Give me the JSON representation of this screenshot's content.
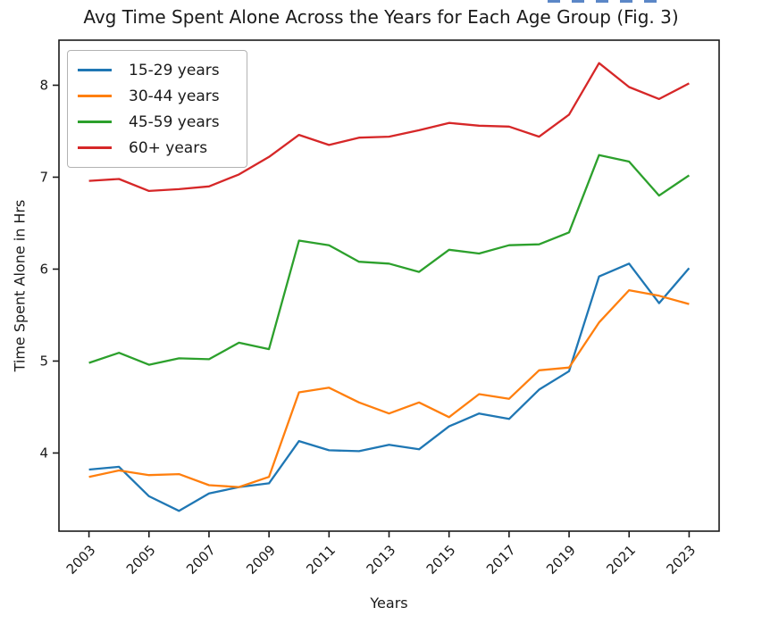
{
  "figure": {
    "top_marks": {
      "count": 5,
      "color": "#5b87c7"
    }
  },
  "chart_data": {
    "type": "line",
    "title": "Avg Time Spent Alone Across the Years for Each Age Group (Fig. 3)",
    "xlabel": "Years",
    "ylabel": "Time Spent Alone in Hrs",
    "x": [
      2003,
      2004,
      2005,
      2006,
      2007,
      2008,
      2009,
      2010,
      2011,
      2012,
      2013,
      2014,
      2015,
      2016,
      2017,
      2018,
      2019,
      2020,
      2021,
      2022,
      2023
    ],
    "series": [
      {
        "name": "15-29 years",
        "color": "#1f77b4",
        "values": [
          3.82,
          3.85,
          3.53,
          3.37,
          3.56,
          3.63,
          3.67,
          4.13,
          4.03,
          4.02,
          4.09,
          4.04,
          4.29,
          4.43,
          4.37,
          4.69,
          4.89,
          5.92,
          6.06,
          5.63,
          6.01
        ]
      },
      {
        "name": "30-44 years",
        "color": "#ff7f0e",
        "values": [
          3.74,
          3.81,
          3.76,
          3.77,
          3.65,
          3.63,
          3.74,
          4.66,
          4.71,
          4.55,
          4.43,
          4.55,
          4.39,
          4.64,
          4.59,
          4.9,
          4.93,
          5.42,
          5.77,
          5.71,
          5.62
        ]
      },
      {
        "name": "45-59 years",
        "color": "#2ca02c",
        "values": [
          4.98,
          5.09,
          4.96,
          5.03,
          5.02,
          5.2,
          5.13,
          6.31,
          6.26,
          6.08,
          6.06,
          5.97,
          6.21,
          6.17,
          6.26,
          6.27,
          6.4,
          7.24,
          7.17,
          6.8,
          7.02
        ]
      },
      {
        "name": "60+ years",
        "color": "#d62728",
        "values": [
          6.96,
          6.98,
          6.85,
          6.87,
          6.9,
          7.03,
          7.22,
          7.46,
          7.35,
          7.43,
          7.44,
          7.51,
          7.59,
          7.56,
          7.55,
          7.44,
          7.68,
          8.24,
          7.98,
          7.85,
          8.02
        ]
      }
    ],
    "xticks": [
      2003,
      2005,
      2007,
      2009,
      2011,
      2013,
      2015,
      2017,
      2019,
      2021,
      2023
    ],
    "yticks": [
      4,
      5,
      6,
      7,
      8
    ],
    "xlim": [
      2002,
      2024
    ],
    "ylim": [
      3.15,
      8.49
    ],
    "grid": false,
    "legend_position": "upper left",
    "x_tick_rotation": 45,
    "axis_color": "#1a1a1a"
  }
}
